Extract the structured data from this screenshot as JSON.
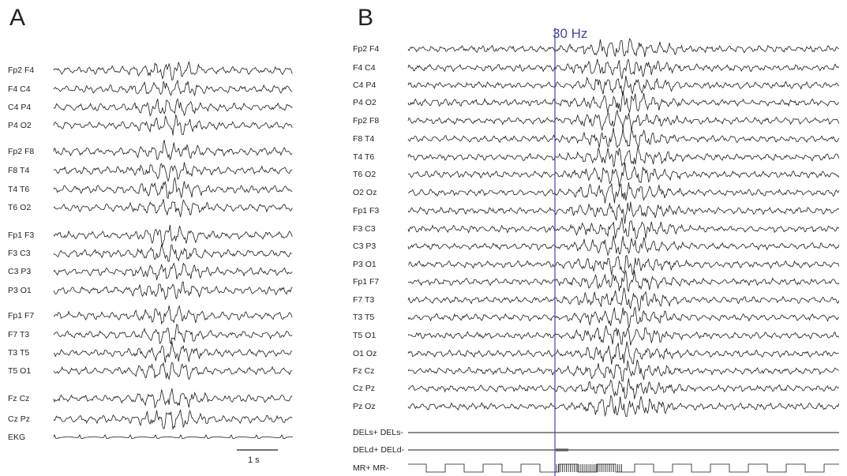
{
  "panelA": {
    "letter": "A",
    "channels": [
      "Fp2 F4",
      "F4 C4",
      "C4 P4",
      "P4 O2",
      "Fp2 F8",
      "F8 T4",
      "T4 T6",
      "T6 O2",
      "Fp1 F3",
      "F3 C3",
      "C3 P3",
      "P3 O1",
      "Fp1 F7",
      "F7 T3",
      "T3 T5",
      "T5 O1",
      "Fz Cz",
      "Cz Pz",
      "EKG"
    ],
    "scale_bar_label": "1 s"
  },
  "panelB": {
    "letter": "B",
    "marker_label": "30 Hz",
    "marker_color": "#3f47a5",
    "channels": [
      "Fp2 F4",
      "F4 C4",
      "C4 P4",
      "P4 O2",
      "Fp2 F8",
      "F8 T4",
      "T4 T6",
      "T6 O2",
      "O2 Oz",
      "Fp1 F3",
      "F3 C3",
      "C3 P3",
      "P3 O1",
      "Fp1 F7",
      "F7 T3",
      "T3 T5",
      "T5 O1",
      "O1 Oz",
      "Fz Cz",
      "Cz Pz",
      "Pz Oz",
      "DELs+ DELs-",
      "DELd+ DELd-",
      "MR+ MR-"
    ]
  },
  "colors": {
    "trace": "#1a1a1a",
    "marker": "#3f47a5"
  }
}
